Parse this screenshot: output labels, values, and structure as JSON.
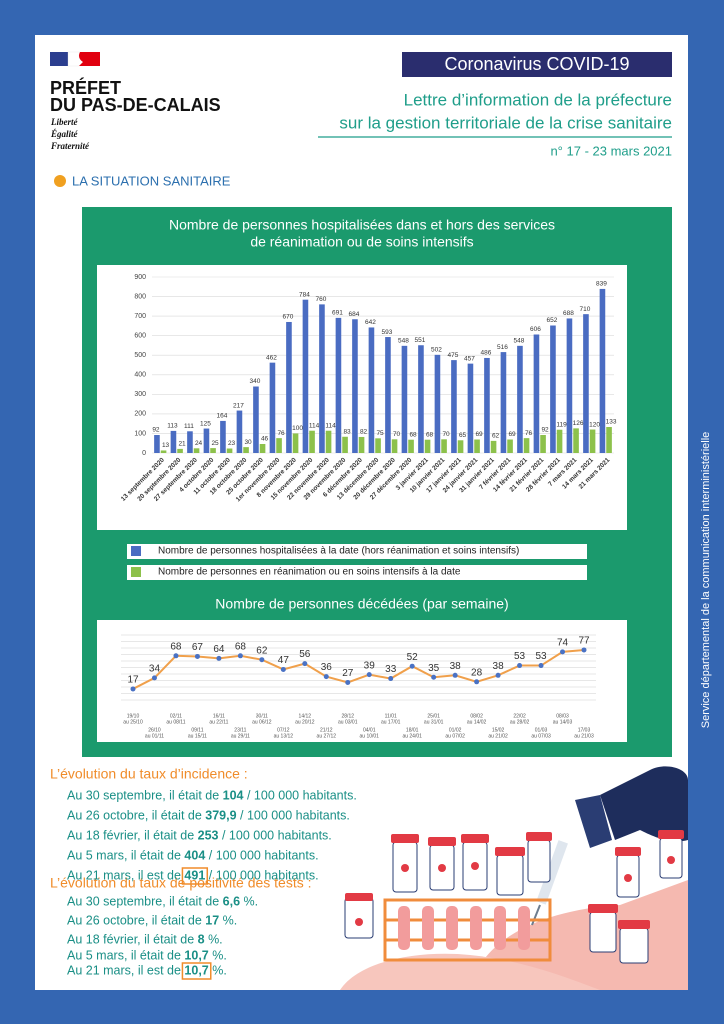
{
  "header": {
    "brand": [
      "PRÉFET",
      "DU PAS-DE-CALAIS"
    ],
    "motto": [
      "Liberté",
      "Égalité",
      "Fraternité"
    ],
    "badge": "Coronavirus COVID-19",
    "title": [
      "Lettre d’information de la préfecture",
      "sur la gestion territoriale de la crise sanitaire"
    ],
    "issue": "n° 17 - 23 mars 2021"
  },
  "section": "LA SITUATION SANITAIRE",
  "side_text": "Service départemental de la communication interministérielle",
  "chart_data": [
    {
      "type": "bar",
      "title": [
        "Nombre de personnes hospitalisées dans et hors des services",
        "de réanimation ou de soins intensifs"
      ],
      "categories": [
        "13 septembre 2020",
        "20 septembre 2020",
        "27 septembre 2020",
        "4 octobre 2020",
        "11 octobre 2020",
        "18 octobre 2020",
        "25 octobre 2020",
        "1er novembre 2020",
        "8 novembre 2020",
        "15 novembre 2020",
        "22 novembre 2020",
        "29 novembre 2020",
        "6 décembre 2020",
        "13 décembre 2020",
        "20 décembre 2020",
        "27 décembre 2020",
        "3 janvier 2021",
        "10 janvier 2021",
        "17 janvier 2021",
        "24 janvier 2021",
        "31 janvier 2021",
        "7 février 2021",
        "14 février 2021",
        "21 février 2021",
        "28 février 2021",
        "7 mars 2021",
        "14 mars 2021",
        "21 mars 2021"
      ],
      "series": [
        {
          "name": "Nombre de personnes hospitalisées à la date (hors réanimation et soins intensifs)",
          "color": "#4a6cc2",
          "values": [
            92,
            113,
            111,
            125,
            164,
            217,
            340,
            462,
            670,
            784,
            760,
            691,
            684,
            642,
            593,
            548,
            551,
            502,
            475,
            457,
            486,
            516,
            548,
            606,
            652,
            688,
            710,
            839
          ]
        },
        {
          "name": "Nombre de personnes en réanimation ou en soins intensifs à la date",
          "color": "#8dc14b",
          "values": [
            13,
            21,
            24,
            25,
            23,
            30,
            46,
            76,
            100,
            114,
            114,
            83,
            82,
            75,
            70,
            68,
            68,
            70,
            65,
            69,
            62,
            69,
            76,
            92,
            119,
            126,
            120,
            133
          ]
        }
      ],
      "ylim": [
        0,
        900
      ],
      "yticks": [
        0,
        100,
        200,
        300,
        400,
        500,
        600,
        700,
        800,
        900
      ],
      "grid": true
    },
    {
      "type": "line",
      "title": "Nombre de personnes décédées (par semaine)",
      "categories": [
        [
          "19/10",
          "au 25/10"
        ],
        [
          "26/10",
          "au 01/11"
        ],
        [
          "02/11",
          "au 08/11"
        ],
        [
          "09/11",
          "au 15/11"
        ],
        [
          "16/11",
          "au 22/11"
        ],
        [
          "23/11",
          "au 29/11"
        ],
        [
          "30/11",
          "au 06/12"
        ],
        [
          "07/12",
          "au 13/12"
        ],
        [
          "14/12",
          "au 20/12"
        ],
        [
          "21/12",
          "au 27/12"
        ],
        [
          "28/12",
          "au 03/01"
        ],
        [
          "04/01",
          "au 10/01"
        ],
        [
          "11/01",
          "au 17/01"
        ],
        [
          "18/01",
          "au 24/01"
        ],
        [
          "25/01",
          "au 31/01"
        ],
        [
          "01/02",
          "au 07/02"
        ],
        [
          "08/02",
          "au 14/02"
        ],
        [
          "15/02",
          "au 21/02"
        ],
        [
          "22/02",
          "au 28/02"
        ],
        [
          "01/03",
          "au 07/03"
        ],
        [
          "08/03",
          "au 14/03"
        ],
        [
          "17/03",
          "au 21/03"
        ]
      ],
      "values": [
        17,
        34,
        68,
        67,
        64,
        68,
        62,
        47,
        56,
        36,
        27,
        39,
        33,
        52,
        35,
        38,
        28,
        38,
        53,
        53,
        74,
        77
      ],
      "color": "#f0a04b",
      "marker_color": "#4a72c4",
      "ylim": [
        0,
        100
      ]
    }
  ],
  "incidence": {
    "title": "L’évolution du taux d’incidence :",
    "lines": [
      {
        "prefix": "Au 30 septembre, il était de ",
        "value": "104",
        "suffix": " / 100 000 habitants."
      },
      {
        "prefix": "Au 26 octobre, il était de ",
        "value": "379,9",
        "suffix": " / 100 000 habitants."
      },
      {
        "prefix": "Au 18 février, il était de ",
        "value": "253",
        "suffix": " / 100 000 habitants."
      },
      {
        "prefix": "Au 5 mars, il était de ",
        "value": "404",
        "suffix": " / 100 000 habitants."
      },
      {
        "prefix": "Au 21 mars, il est de ",
        "value": "491",
        "suffix": " / 100 000 habitants.",
        "boxed": true
      }
    ]
  },
  "positivity": {
    "title": "L’évolution du taux de positivité des tests :",
    "lines": [
      {
        "prefix": "Au 30 septembre, il était de ",
        "value": "6,6",
        "suffix": " %."
      },
      {
        "prefix": "Au 26 octobre, il était de ",
        "value": "17",
        "suffix": " %."
      },
      {
        "prefix": "Au 18 février, il était de ",
        "value": "8",
        "suffix": " %."
      },
      {
        "prefix": "Au 5 mars, il était de ",
        "value": "10,7",
        "suffix": " %."
      },
      {
        "prefix": "Au 21 mars, il est de ",
        "value": "10,7",
        "suffix": " %.",
        "boxed": true
      }
    ]
  }
}
